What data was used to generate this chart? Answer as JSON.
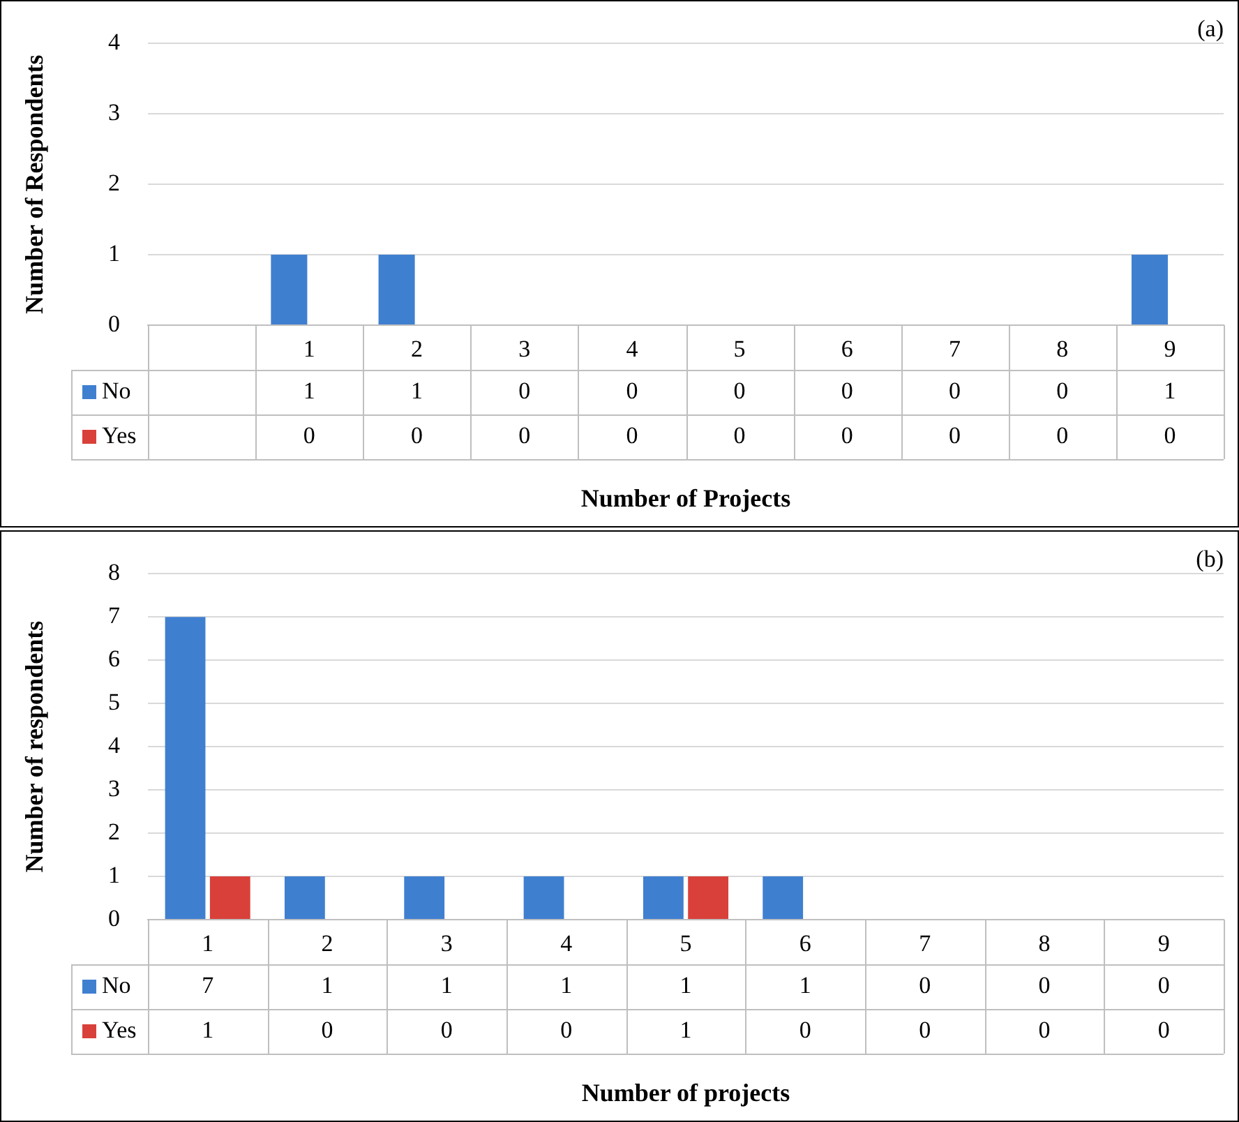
{
  "chart_data": [
    {
      "type": "bar",
      "categories": [
        null,
        "1",
        "2",
        "3",
        "4",
        "5",
        "6",
        "7",
        "8",
        "9"
      ],
      "series": [
        {
          "name": "No",
          "color": "#3f7fd0",
          "values": [
            null,
            1,
            1,
            0,
            0,
            0,
            0,
            0,
            0,
            1
          ]
        },
        {
          "name": "Yes",
          "color": "#d9403a",
          "values": [
            null,
            0,
            0,
            0,
            0,
            0,
            0,
            0,
            0,
            0
          ]
        }
      ],
      "ylim": [
        0,
        4
      ],
      "yticks": [
        0,
        1,
        2,
        3,
        4
      ],
      "grid": "y",
      "legend": "bottom",
      "data_labels": true,
      "xlabel": "Number of Projects",
      "ylabel": "Number of Respondents",
      "annotations": [
        "(a)"
      ]
    },
    {
      "type": "bar",
      "categories": [
        "1",
        "2",
        "3",
        "4",
        "5",
        "6",
        "7",
        "8",
        "9"
      ],
      "series": [
        {
          "name": "No",
          "color": "#3f7fd0",
          "values": [
            7,
            1,
            1,
            1,
            1,
            1,
            0,
            0,
            0
          ]
        },
        {
          "name": "Yes",
          "color": "#d9403a",
          "values": [
            1,
            0,
            0,
            0,
            1,
            0,
            0,
            0,
            0
          ]
        }
      ],
      "ylim": [
        0,
        8
      ],
      "yticks": [
        0,
        1,
        2,
        3,
        4,
        5,
        6,
        7,
        8
      ],
      "grid": "y",
      "legend": "bottom",
      "data_labels": true,
      "xlabel": "Number of projects",
      "ylabel": "Number of respondents",
      "annotations": [
        "(b)"
      ]
    }
  ]
}
